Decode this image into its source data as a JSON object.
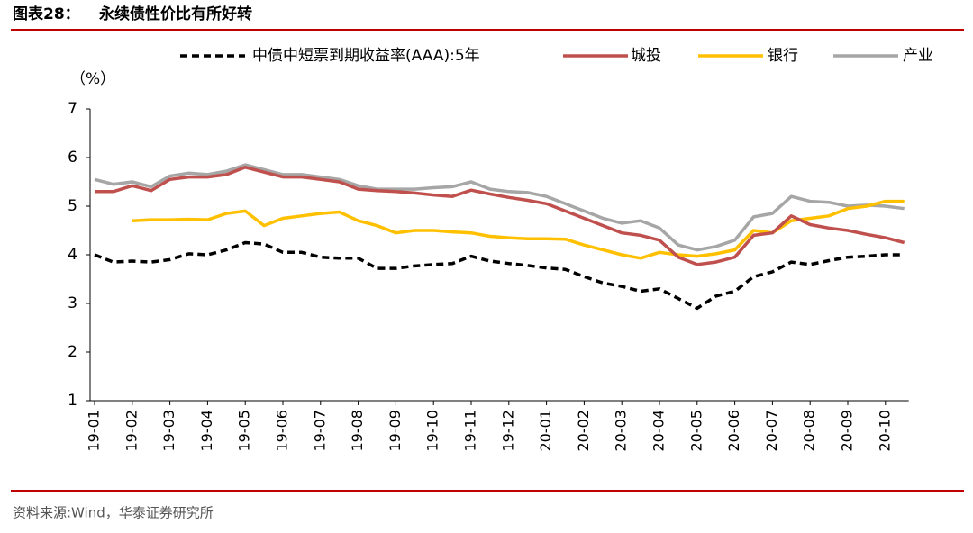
{
  "chart_data": {
    "type": "line",
    "figure_label": "图表28：",
    "title": "永续债性价比有所好转",
    "y_unit": "（%）",
    "source": "资料来源:Wind，华泰证券研究所",
    "categories": [
      "19-01",
      null,
      "19-02",
      null,
      "19-03",
      null,
      "19-04",
      null,
      "19-05",
      null,
      "19-06",
      null,
      "19-07",
      null,
      "19-08",
      null,
      "19-09",
      null,
      "19-10",
      null,
      "19-11",
      null,
      "19-12",
      null,
      "20-01",
      null,
      "20-02",
      null,
      "20-03",
      null,
      "20-04",
      null,
      "20-05",
      null,
      "20-06",
      null,
      "20-07",
      null,
      "20-08",
      null,
      "20-09",
      null,
      "20-10",
      null
    ],
    "ylim": [
      1,
      7
    ],
    "yticks": [
      1,
      2,
      3,
      4,
      5,
      6,
      7
    ],
    "series": [
      {
        "name": "中债中短票到期收益率(AAA):5年",
        "color": "#000000",
        "style": "dashed",
        "values": [
          4.0,
          3.85,
          3.87,
          3.85,
          3.9,
          4.02,
          4.0,
          4.1,
          4.25,
          4.22,
          4.05,
          4.05,
          3.95,
          3.93,
          3.93,
          3.72,
          3.72,
          3.77,
          3.8,
          3.82,
          3.97,
          3.87,
          3.82,
          3.78,
          3.73,
          3.7,
          3.55,
          3.42,
          3.35,
          3.25,
          3.3,
          3.1,
          2.9,
          3.15,
          3.25,
          3.55,
          3.65,
          3.85,
          3.8,
          3.88,
          3.95,
          3.97,
          4.0,
          4.0
        ]
      },
      {
        "name": "城投",
        "color": "#c0504d",
        "style": "solid",
        "values": [
          5.3,
          5.3,
          5.42,
          5.32,
          5.55,
          5.6,
          5.6,
          5.65,
          5.8,
          5.7,
          5.6,
          5.6,
          5.55,
          5.5,
          5.35,
          5.32,
          5.3,
          5.27,
          5.23,
          5.2,
          5.33,
          5.25,
          5.18,
          5.12,
          5.05,
          4.9,
          4.75,
          4.6,
          4.45,
          4.4,
          4.3,
          3.95,
          3.8,
          3.85,
          3.95,
          4.4,
          4.45,
          4.8,
          4.62,
          4.55,
          4.5,
          4.42,
          4.35,
          4.25
        ]
      },
      {
        "name": "银行",
        "color": "#ffc000",
        "style": "solid",
        "values": [
          null,
          null,
          4.7,
          4.72,
          4.72,
          4.73,
          4.72,
          4.85,
          4.9,
          4.6,
          4.75,
          4.8,
          4.85,
          4.88,
          4.7,
          4.6,
          4.45,
          4.5,
          4.5,
          4.47,
          4.45,
          4.38,
          4.35,
          4.33,
          4.33,
          4.32,
          4.2,
          4.1,
          4.0,
          3.93,
          4.05,
          4.0,
          3.97,
          4.02,
          4.1,
          4.5,
          4.45,
          4.7,
          4.75,
          4.8,
          4.95,
          5.0,
          5.1,
          5.1
        ]
      },
      {
        "name": "产业",
        "color": "#a6a6a6",
        "style": "solid",
        "values": [
          5.55,
          5.45,
          5.5,
          5.4,
          5.62,
          5.68,
          5.65,
          5.72,
          5.85,
          5.75,
          5.65,
          5.65,
          5.6,
          5.55,
          5.42,
          5.35,
          5.35,
          5.35,
          5.38,
          5.4,
          5.5,
          5.35,
          5.3,
          5.28,
          5.2,
          5.05,
          4.9,
          4.75,
          4.65,
          4.7,
          4.55,
          4.2,
          4.1,
          4.17,
          4.3,
          4.78,
          4.85,
          5.2,
          5.1,
          5.08,
          5.0,
          5.02,
          5.0,
          4.95
        ]
      }
    ]
  }
}
